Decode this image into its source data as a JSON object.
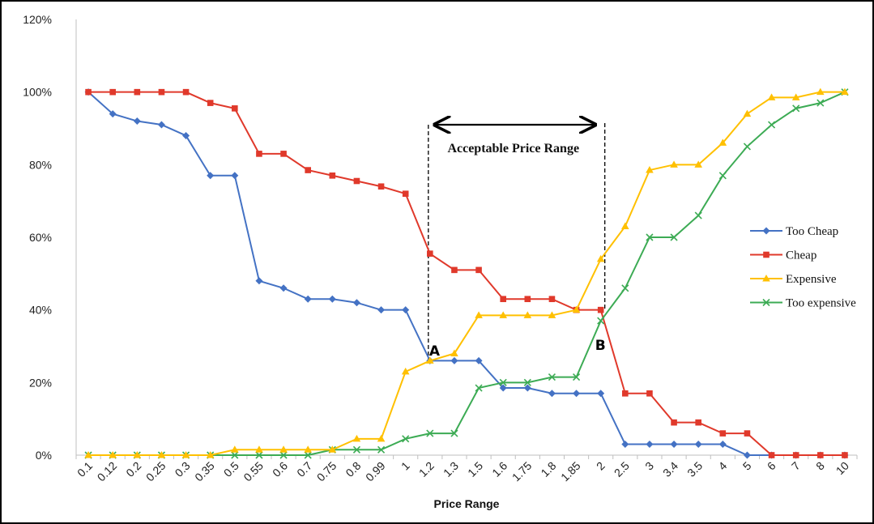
{
  "chart_data": {
    "type": "line",
    "title": "",
    "xlabel": "Price Range",
    "ylabel": "",
    "ylim": [
      0,
      120
    ],
    "y_ticks": [
      "0%",
      "20%",
      "40%",
      "60%",
      "80%",
      "100%",
      "120%"
    ],
    "x": [
      "0.1",
      "0.12",
      "0.2",
      "0.25",
      "0.3",
      "0.35",
      "0.5",
      "0.55",
      "0.6",
      "0.7",
      "0.75",
      "0.8",
      "0.99",
      "1",
      "1.2",
      "1.3",
      "1.5",
      "1.6",
      "1.75",
      "1.8",
      "1.85",
      "2",
      "2.5",
      "3",
      "3.4",
      "3.5",
      "4",
      "5",
      "6",
      "7",
      "8",
      "10"
    ],
    "grid": false,
    "legend_position": "right",
    "series": [
      {
        "name": "Too Cheap",
        "color": "#4472c4",
        "marker": "diamond",
        "values": [
          100,
          94,
          92,
          91,
          88,
          77,
          77,
          48,
          46,
          43,
          43,
          42,
          40,
          40,
          26,
          26,
          26,
          18.5,
          18.5,
          17,
          17,
          17,
          3,
          3,
          3,
          3,
          3,
          0,
          0,
          0,
          0,
          0
        ]
      },
      {
        "name": "Cheap",
        "color": "#e0392b",
        "marker": "square",
        "values": [
          100,
          100,
          100,
          100,
          100,
          97,
          95.5,
          83,
          83,
          78.5,
          77,
          75.5,
          74,
          72,
          55.5,
          51,
          51,
          43,
          43,
          43,
          40,
          40,
          17,
          17,
          9,
          9,
          6,
          6,
          0,
          0,
          0,
          0
        ]
      },
      {
        "name": "Expensive",
        "color": "#ffc000",
        "marker": "triangle",
        "values": [
          0,
          0,
          0,
          0,
          0,
          0,
          1.5,
          1.5,
          1.5,
          1.5,
          1.5,
          4.5,
          4.5,
          23,
          26,
          28,
          38.5,
          38.5,
          38.5,
          38.5,
          40,
          54,
          63,
          78.5,
          80,
          80,
          86,
          94,
          98.5,
          98.5,
          100,
          100
        ]
      },
      {
        "name": "Too expensive",
        "color": "#3cab54",
        "marker": "x",
        "values": [
          0,
          0,
          0,
          0,
          0,
          0,
          0,
          0,
          0,
          0,
          1.5,
          1.5,
          1.5,
          4.5,
          6,
          6,
          18.5,
          20,
          20,
          21.5,
          21.5,
          37,
          46,
          60,
          60,
          66,
          77,
          85,
          91,
          95.5,
          97,
          100
        ]
      }
    ],
    "annotations": {
      "range_label": "Acceptable Price Range",
      "range_start_x": "1.2",
      "range_end_x": "2",
      "point_a_label": "A",
      "point_a_x": "1.2",
      "point_b_label": "B",
      "point_b_x": "2"
    }
  }
}
